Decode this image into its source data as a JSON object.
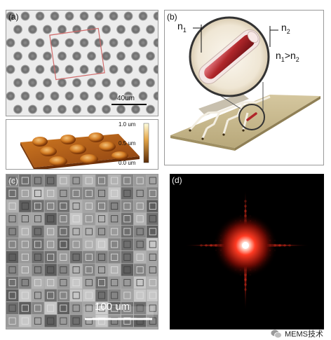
{
  "figure": {
    "panels": {
      "a": {
        "label": "(a)",
        "scale_bar": "40um",
        "colorbar": {
          "max": "1.0 um",
          "mid": "0.5 um",
          "min": "0.0 um"
        }
      },
      "b": {
        "label": "(b)",
        "n1": "n",
        "n1_sub": "1",
        "n2": "n",
        "n2_sub": "2",
        "relation_n1": "n",
        "relation_n1_sub": "1",
        "relation_op": ">n",
        "relation_n2_sub": "2"
      },
      "c": {
        "label": "(c)",
        "scale_bar": "100 um"
      },
      "d": {
        "label": "(d)"
      }
    },
    "watermark": "MEMS技术",
    "colors": {
      "frame_gray": "#8a8a8a",
      "surface_orange": "#c9701e",
      "rod_red": "#b0262a",
      "substrate_tan": "#cbb98e",
      "diffraction_red": "#ff2a1a"
    }
  }
}
